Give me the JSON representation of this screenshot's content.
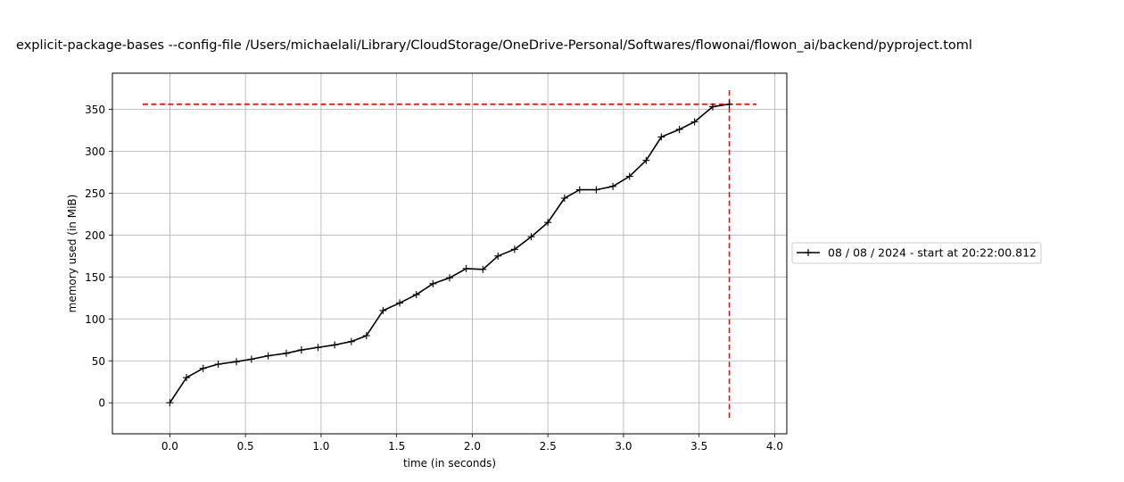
{
  "chart_data": {
    "type": "line",
    "title": "explicit-package-bases --config-file /Users/michaelali/Library/CloudStorage/OneDrive-Personal/Softwares/flowonai/flowon_ai/backend/pyproject.toml",
    "xlabel": "time (in seconds)",
    "ylabel": "memory used (in MiB)",
    "xlim": [
      -0.38,
      4.08
    ],
    "ylim": [
      -37,
      393
    ],
    "xticks": [
      0.0,
      0.5,
      1.0,
      1.5,
      2.0,
      2.5,
      3.0,
      3.5,
      4.0
    ],
    "xtick_labels": [
      "0.0",
      "0.5",
      "1.0",
      "1.5",
      "2.0",
      "2.5",
      "3.0",
      "3.5",
      "4.0"
    ],
    "yticks": [
      0,
      50,
      100,
      150,
      200,
      250,
      300,
      350
    ],
    "ytick_labels": [
      "0",
      "50",
      "100",
      "150",
      "200",
      "250",
      "300",
      "350"
    ],
    "grid": true,
    "legend_position": "right, outside plot",
    "series": [
      {
        "name": "08 / 08 / 2024 - start at 20:22:00.812",
        "color": "#000000",
        "marker": "plus",
        "x": [
          0.0,
          0.11,
          0.22,
          0.32,
          0.44,
          0.54,
          0.65,
          0.77,
          0.87,
          0.98,
          1.09,
          1.2,
          1.3,
          1.41,
          1.52,
          1.63,
          1.74,
          1.85,
          1.96,
          2.07,
          2.17,
          2.28,
          2.39,
          2.5,
          2.61,
          2.71,
          2.82,
          2.93,
          3.04,
          3.15,
          3.25,
          3.37,
          3.47,
          3.59,
          3.7
        ],
        "y": [
          0,
          30,
          41,
          46,
          49,
          52,
          56,
          59,
          63,
          66,
          69,
          73,
          80,
          110,
          119,
          129,
          142,
          149,
          160,
          159,
          175,
          183,
          198,
          215,
          244,
          254,
          254,
          258,
          270,
          289,
          317,
          326,
          335,
          353,
          356
        ]
      }
    ],
    "reference_lines": {
      "color": "#ff0000",
      "max_memory_y": 356,
      "max_memory_x_extent": [
        -0.18,
        3.88
      ],
      "max_time_x": 3.7,
      "max_time_y_extent": [
        -18,
        374
      ]
    }
  }
}
